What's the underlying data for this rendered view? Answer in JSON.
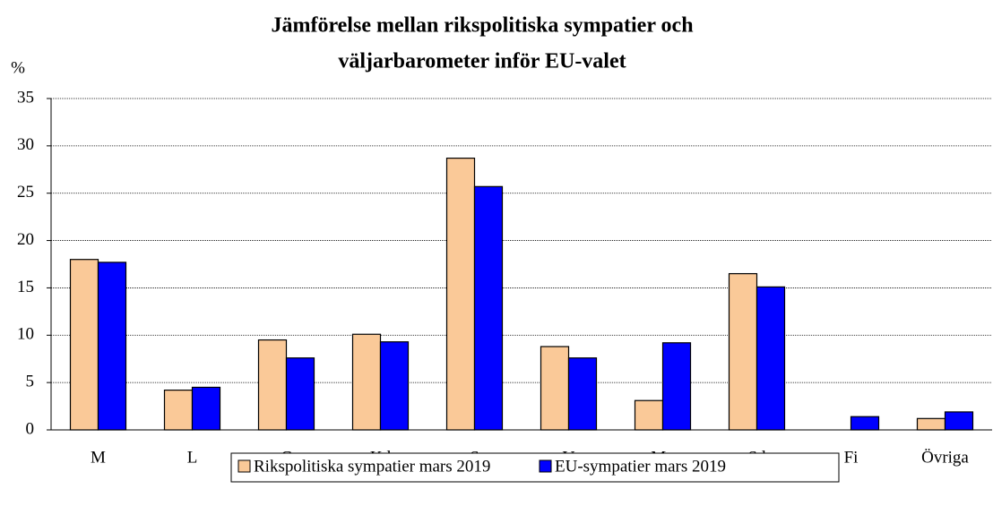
{
  "chart_data": {
    "type": "bar",
    "title": [
      "Jämförelse mellan rikspolitiska sympatier och",
      "väljarbarometer inför EU-valet"
    ],
    "y_label": "%",
    "categories": [
      "M",
      "L",
      "C",
      "Kd",
      "S",
      "V",
      "Mp",
      "Sd",
      "Fi",
      "Övriga"
    ],
    "series": [
      {
        "name": "Rikspolitiska sympatier mars 2019",
        "color": "#fac998",
        "values": [
          18.0,
          4.2,
          9.5,
          10.1,
          28.7,
          8.8,
          3.1,
          16.5,
          null,
          1.2
        ]
      },
      {
        "name": "EU-sympatier mars 2019",
        "color": "#0000ff",
        "values": [
          17.7,
          4.5,
          7.6,
          9.3,
          25.7,
          7.6,
          9.2,
          15.1,
          1.4,
          1.9
        ]
      }
    ],
    "ylim": [
      0,
      35
    ],
    "yticks": [
      0,
      5,
      10,
      15,
      20,
      25,
      30,
      35
    ],
    "grid": true
  }
}
